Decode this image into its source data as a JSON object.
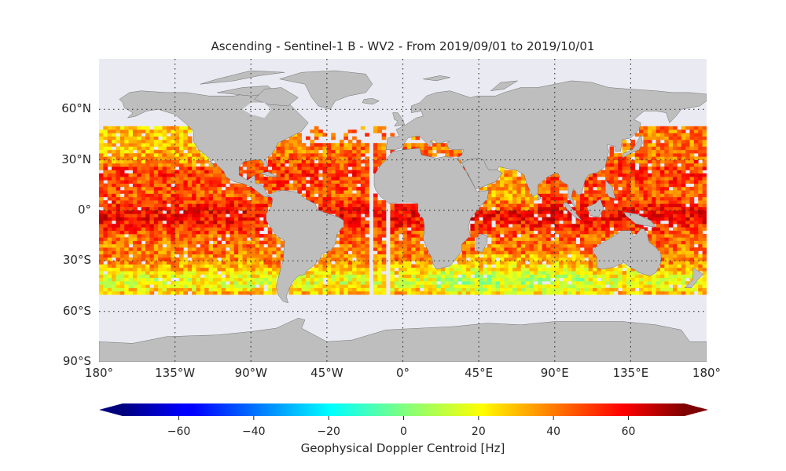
{
  "title": "Ascending - Sentinel-1 B - WV2 - From 2019/09/01 to 2019/10/01",
  "map": {
    "projection": "equirectangular",
    "lon_range": [
      -180,
      180
    ],
    "lat_range": [
      -90,
      90
    ],
    "ocean_color": "#eaeaf2",
    "land_color": "#bebebe",
    "grid": "dotted",
    "lat_labels": [
      "60°N",
      "30°N",
      "0°",
      "30°S",
      "60°S",
      "90°S"
    ],
    "lat_values": [
      60,
      30,
      0,
      -30,
      -60,
      -90
    ],
    "lon_labels": [
      "180°",
      "135°W",
      "90°W",
      "45°W",
      "0°",
      "45°E",
      "90°E",
      "135°E",
      "180°"
    ],
    "lon_values": [
      -180,
      -135,
      -90,
      -45,
      0,
      45,
      90,
      135,
      180
    ]
  },
  "data_field": {
    "variable": "Geophysical Doppler Centroid",
    "coverage_lat": [
      -50,
      50
    ],
    "swath_gaps_lon": [
      [
        -22,
        -18
      ],
      [
        -12,
        -8
      ]
    ]
  },
  "colorbar": {
    "colormap": "jet",
    "range": [
      -75,
      75
    ],
    "extend": "both",
    "tick_values": [
      -60,
      -40,
      -20,
      0,
      20,
      40,
      60
    ],
    "tick_labels": [
      "−60",
      "−40",
      "−20",
      "0",
      "20",
      "40",
      "60"
    ],
    "label": "Geophysical Doppler Centroid [Hz]"
  }
}
